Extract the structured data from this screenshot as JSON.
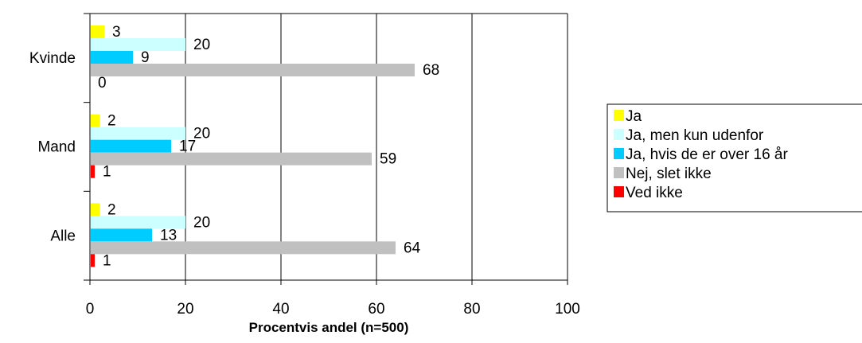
{
  "chart_data": {
    "type": "bar",
    "orientation": "horizontal",
    "categories": [
      "Kvinde",
      "Mand",
      "Alle"
    ],
    "series": [
      {
        "name": "Ja",
        "color": "#FFFF00",
        "values": [
          3,
          2,
          2
        ]
      },
      {
        "name": "Ja, men kun udenfor",
        "color": "#CCFFFF",
        "values": [
          20,
          20,
          20
        ]
      },
      {
        "name": "Ja, hvis de er over 16 år",
        "color": "#00CCFF",
        "values": [
          9,
          17,
          13
        ]
      },
      {
        "name": "Nej, slet ikke",
        "color": "#C0C0C0",
        "values": [
          68,
          59,
          64
        ]
      },
      {
        "name": "Ved ikke",
        "color": "#FF0000",
        "values": [
          0,
          1,
          1
        ]
      }
    ],
    "xlabel": "Procentvis andel (n=500)",
    "ylabel": "",
    "xlim": [
      0,
      100
    ],
    "xticks": [
      0,
      20,
      40,
      60,
      80,
      100
    ],
    "grid": true,
    "legend_position": "right"
  }
}
